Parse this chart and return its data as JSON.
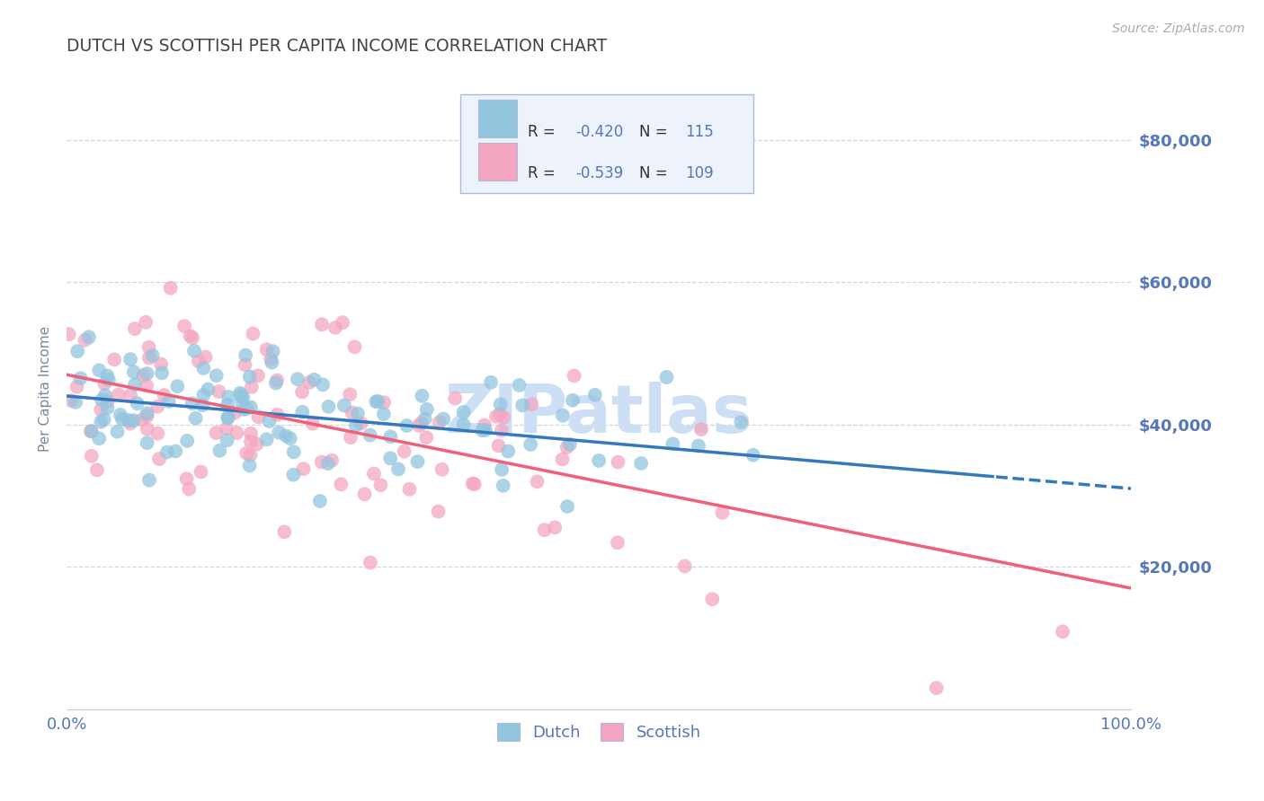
{
  "title": "DUTCH VS SCOTTISH PER CAPITA INCOME CORRELATION CHART",
  "source": "Source: ZipAtlas.com",
  "ylabel": "Per Capita Income",
  "xlim": [
    0,
    1
  ],
  "ylim": [
    0,
    90000
  ],
  "ytick_vals": [
    0,
    20000,
    40000,
    60000,
    80000
  ],
  "ytick_labels": [
    "",
    "$20,000",
    "$40,000",
    "$60,000",
    "$80,000"
  ],
  "xtick_vals": [
    0,
    1
  ],
  "xtick_labels": [
    "0.0%",
    "100.0%"
  ],
  "dutch_color": "#92c5de",
  "scottish_color": "#f4a6c0",
  "dutch_line_color": "#3478bd",
  "scottish_line_color": "#f0607a",
  "R_dutch": -0.42,
  "N_dutch": 115,
  "R_scottish": -0.539,
  "N_scottish": 109,
  "dutch_line_x0": 0.0,
  "dutch_line_y0": 44000,
  "dutch_line_x1": 1.0,
  "dutch_line_y1": 31000,
  "scottish_line_x0": 0.0,
  "scottish_line_y0": 47000,
  "scottish_line_x1": 1.0,
  "scottish_line_y1": 17000,
  "dutch_dashed_split": 0.87,
  "watermark": "ZIPatlas",
  "watermark_color": "#ccdff5",
  "background_color": "#ffffff",
  "grid_color": "#cccccc",
  "title_color": "#444444",
  "tick_color": "#5577bb",
  "legend_bg_color": "#eef2fa",
  "legend_border_color": "#aabbdd",
  "bottom_legend_color": "#5577bb"
}
